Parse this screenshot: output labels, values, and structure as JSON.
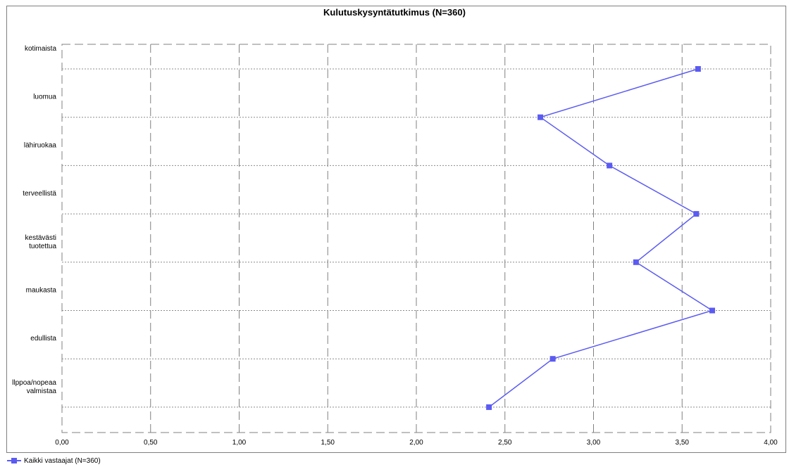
{
  "chart_data": {
    "type": "line",
    "title": "Kulutuskysyntätutkimus (N=360)",
    "orientation": "horizontal",
    "categories": [
      "kotimaista",
      "luomua",
      "lähiruokaa",
      "terveellistä",
      "kestävästi tuotettua",
      "maukasta",
      "edullista",
      "llppoa/nopeaa valmistaa"
    ],
    "series": [
      {
        "name": "Kaikki vastaajat (N=360)",
        "values": [
          3.59,
          2.7,
          3.09,
          3.58,
          3.24,
          3.67,
          2.77,
          2.41
        ],
        "color": "#5b5bf2"
      }
    ],
    "xlim": [
      0,
      4
    ],
    "xticks": [
      "0,00",
      "0,50",
      "1,00",
      "1,50",
      "2,00",
      "2,50",
      "3,00",
      "3,50",
      "4,00"
    ],
    "grid": true,
    "legend_position": "bottom-left"
  }
}
